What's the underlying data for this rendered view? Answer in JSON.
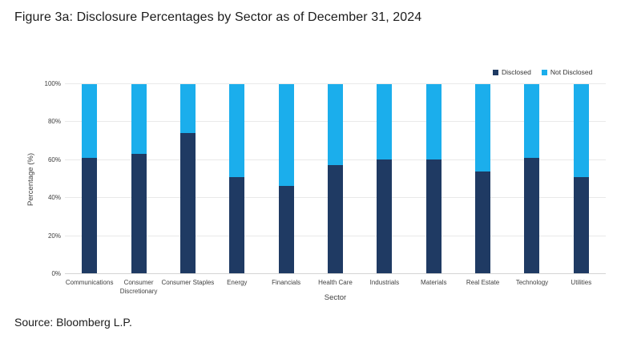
{
  "title": "Figure 3a: Disclosure Percentages by Sector as of December 31, 2024",
  "source": "Source: Bloomberg L.P.",
  "colors": {
    "disclosed": "#1F3A63",
    "not_disclosed": "#1BAEEC",
    "gridline": "#E9E9E9",
    "axis_line": "#D4D4D4",
    "text": "#404040"
  },
  "chart_data": {
    "type": "bar",
    "stacked": true,
    "stacked_total": 100,
    "title": "Figure 3a: Disclosure Percentages by Sector as of December 31, 2024",
    "categories": [
      "Communications",
      "Consumer Discretionary",
      "Consumer Staples",
      "Energy",
      "Financials",
      "Health Care",
      "Industrials",
      "Materials",
      "Real Estate",
      "Technology",
      "Utilities"
    ],
    "series": [
      {
        "name": "Disclosed",
        "color": "#1F3A63",
        "values": [
          61,
          63,
          74,
          51,
          46,
          57,
          60,
          60,
          54,
          61,
          51
        ]
      },
      {
        "name": "Not Disclosed",
        "color": "#1BAEEC",
        "values": [
          39,
          37,
          26,
          49,
          54,
          43,
          40,
          40,
          46,
          39,
          49
        ]
      }
    ],
    "xlabel": "Sector",
    "ylabel": "Percentage (%)",
    "ylim": [
      0,
      100
    ],
    "yticks": [
      "0%",
      "20%",
      "40%",
      "60%",
      "80%",
      "100%"
    ],
    "grid": "horizontal",
    "legend_position": "top-right"
  }
}
